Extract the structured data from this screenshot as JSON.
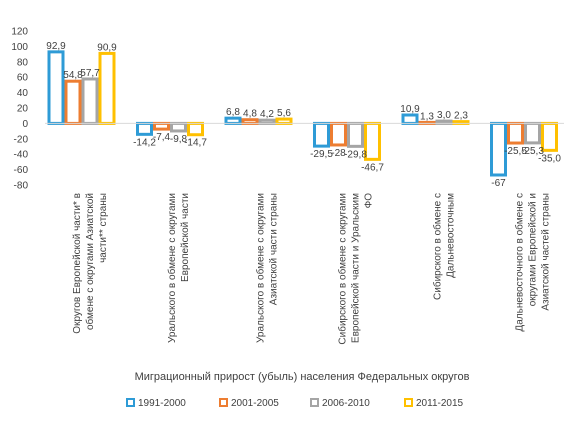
{
  "chart_data": {
    "type": "bar",
    "xlabel": "Миграционный прирост (убыль) населения Федеральных округов",
    "ylim": [
      -80,
      120
    ],
    "yticks": [
      -80,
      -60,
      -40,
      -20,
      0,
      20,
      40,
      60,
      80,
      100,
      120
    ],
    "grid": false,
    "legend_position": "bottom",
    "categories": [
      [
        "Округов Европейской части* в",
        "обмене с округами Азиатской",
        "части** страны"
      ],
      [
        "Уральского в обмене с округами",
        "Европейской части"
      ],
      [
        "Уральского в обмене с округами",
        "Азиатской части страны"
      ],
      [
        "Сибирского в обмене с округами",
        "Европейской части и Уральским",
        "ФО"
      ],
      [
        "Сибирского в обмене с",
        "Дальневосточным"
      ],
      [
        "Дальневосточного в обмене с",
        "округами Европейской и",
        "Азиатской частей страны"
      ]
    ],
    "series": [
      {
        "name": "1991-2000",
        "color": "#2E9BD6",
        "values": [
          92.9,
          -14.2,
          6.8,
          -29.5,
          10.9,
          -67
        ],
        "labels": [
          "92,9",
          "-14,2",
          "6,8",
          "-29,5",
          "10,9",
          "-67"
        ]
      },
      {
        "name": "2001-2005",
        "color": "#ED7D31",
        "values": [
          54.8,
          -7.4,
          4.8,
          -28,
          1.3,
          -25.5
        ],
        "labels": [
          "54,8",
          "-7,4",
          "4,8",
          "-28",
          "1,3",
          "-25,5"
        ]
      },
      {
        "name": "2006-2010",
        "color": "#A5A5A5",
        "values": [
          57.7,
          -9.8,
          4.2,
          -29.8,
          3.0,
          -25.3
        ],
        "labels": [
          "57,7",
          "-9,8",
          "4,2",
          "-29,8",
          "3,0",
          "-25,3"
        ]
      },
      {
        "name": "2011-2015",
        "color": "#FFC000",
        "values": [
          90.9,
          -14.7,
          5.6,
          -46.7,
          2.3,
          -35.0
        ],
        "labels": [
          "90,9",
          "-14,7",
          "5,6",
          "-46,7",
          "2,3",
          "-35,0"
        ]
      }
    ]
  }
}
